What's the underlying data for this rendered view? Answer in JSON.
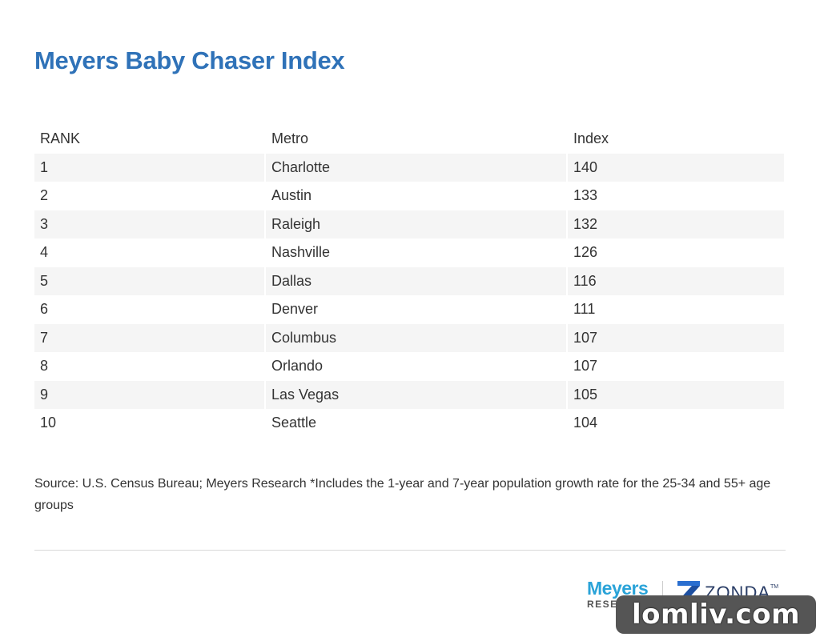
{
  "chart_data": {
    "type": "table",
    "title": "Meyers Baby Chaser Index",
    "columns": [
      "RANK",
      "Metro",
      "Index"
    ],
    "rows": [
      [
        "1",
        "Charlotte",
        "140"
      ],
      [
        "2",
        "Austin",
        "133"
      ],
      [
        "3",
        "Raleigh",
        "132"
      ],
      [
        "4",
        "Nashville",
        "126"
      ],
      [
        "5",
        "Dallas",
        "116"
      ],
      [
        "6",
        "Denver",
        "111"
      ],
      [
        "7",
        "Columbus",
        "107"
      ],
      [
        "8",
        "Orlando",
        "107"
      ],
      [
        "9",
        "Las Vegas",
        "105"
      ],
      [
        "10",
        "Seattle",
        "104"
      ]
    ],
    "footnote": "Source: U.S. Census Bureau; Meyers Research *Includes the 1-year and 7-year population growth rate for the 25-34 and 55+ age groups"
  },
  "branding": {
    "meyers_word": "Meyers",
    "meyers_sub": "RESEARCH",
    "zonda_word": "ZONDA",
    "zonda_tm": "TM",
    "watermark": "lomliv.com"
  },
  "colors": {
    "title": "#2f72b8",
    "stripe": "#f5f5f5",
    "meyers": "#2aa3d8",
    "zonda": "#2a3d66",
    "watermark_bg": "#555555"
  }
}
